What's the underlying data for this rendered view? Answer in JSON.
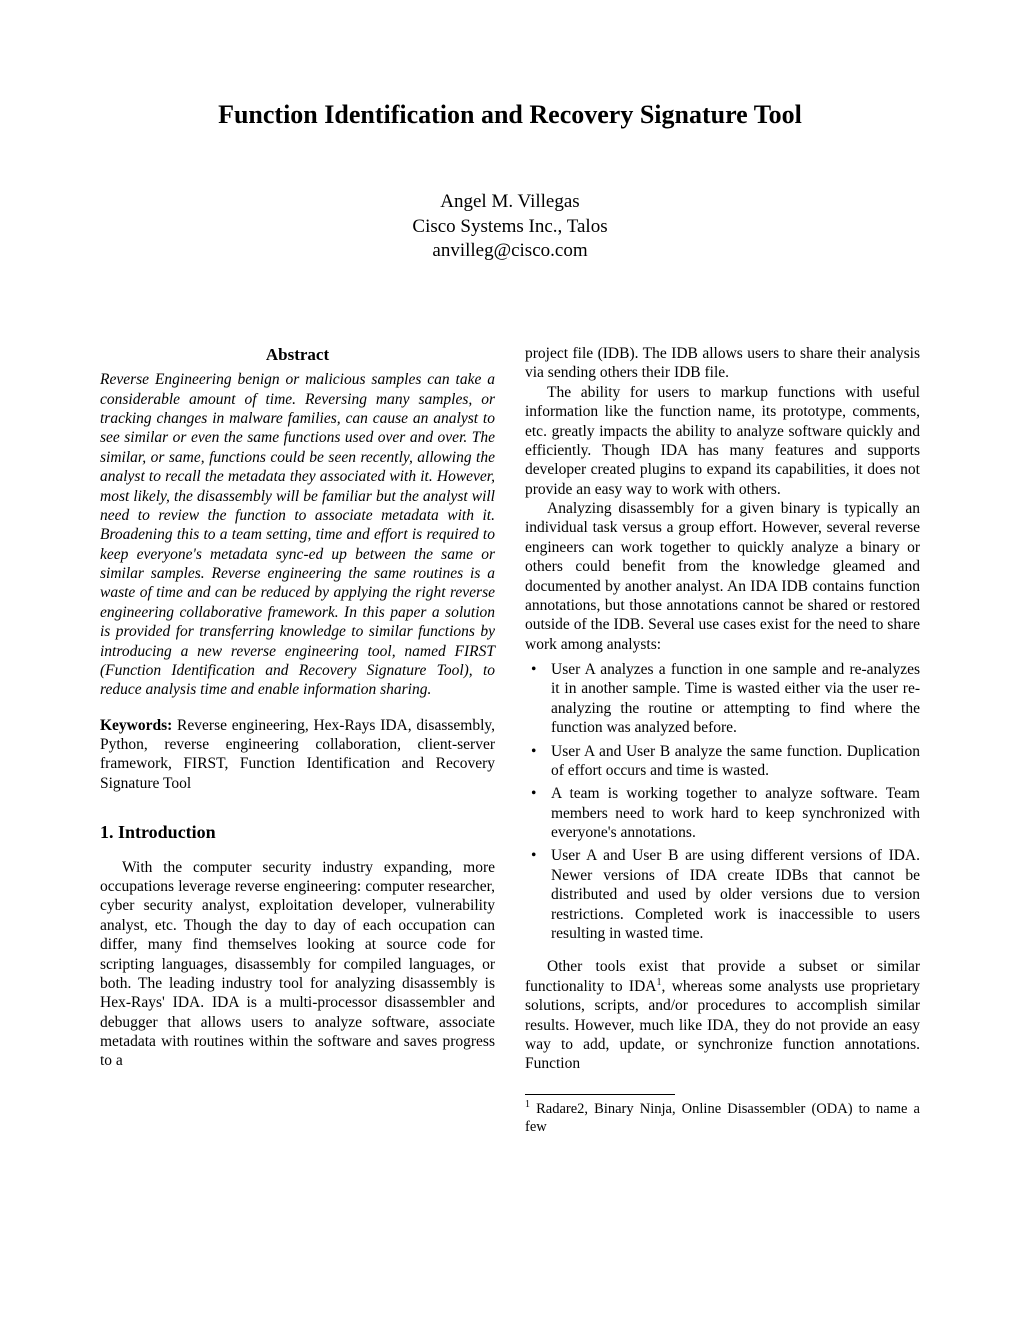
{
  "title": "Function Identification and Recovery Signature Tool",
  "author": {
    "name": "Angel M. Villegas",
    "affiliation": "Cisco Systems Inc., Talos",
    "email": "anvilleg@cisco.com"
  },
  "abstract": {
    "heading": "Abstract",
    "text": "Reverse Engineering benign or malicious samples can take a considerable amount of time. Reversing many samples, or tracking changes in malware families, can cause an analyst to see similar or even the same functions used over and over. The similar, or same, functions could be seen recently, allowing the analyst to recall the metadata they associated with it. However, most likely, the disassembly will be familiar but the analyst will need to review the function to associate metadata with it. Broadening this to a team setting, time and effort is required to keep everyone's metadata sync-ed up between the same or similar samples. Reverse engineering the same routines is a waste of time and can be reduced by applying the right reverse engineering collaborative framework. In this paper a solution is provided for transferring knowledge to similar functions by introducing a new reverse engineering tool, named FIRST (Function Identification and Recovery Signature Tool), to reduce analysis time and enable information sharing."
  },
  "keywords": {
    "label": "Keywords:",
    "text": " Reverse engineering, Hex-Rays IDA, disassembly, Python, reverse engineering collaboration, client-server framework, FIRST, Function Identification and Recovery Signature Tool"
  },
  "section1": {
    "heading": "1. Introduction",
    "para1": "With the computer security industry expanding, more occupations leverage reverse engineering: computer researcher, cyber security analyst, exploitation developer, vulnerability analyst, etc. Though the day to day of each occupation can differ, many find themselves looking at source code for scripting languages, disassembly for compiled languages, or both. The leading industry tool for analyzing disassembly is Hex-Rays' IDA. IDA is a multi-processor disassembler and debugger that allows users to analyze software, associate metadata with routines within the software and saves progress to a"
  },
  "col2": {
    "para1": "project file (IDB). The IDB allows users to share their analysis via sending others their IDB file.",
    "para2": "The ability for users to markup functions with useful information like the function name, its prototype, comments, etc. greatly impacts the ability to analyze software quickly and efficiently. Though IDA has many features and supports developer created plugins to expand its capabilities, it does not provide an easy way to work with others.",
    "para3": "Analyzing disassembly for a given binary is typically an individual task versus a group effort. However, several reverse engineers can work together to quickly analyze a binary or others could benefit from the knowledge gleamed and documented by another analyst. An IDA IDB contains function annotations, but those annotations cannot be shared or restored outside of the IDB. Several use cases exist for the need to share work among analysts:",
    "bullets": [
      "User A analyzes a function in one sample and re-analyzes it in another sample. Time is wasted either via the user re-analyzing the routine or attempting to find where the function was analyzed before.",
      "User A and User B analyze the same function. Duplication of effort occurs and time is wasted.",
      "A team is working together to analyze software. Team members need to work hard to keep synchronized with everyone's annotations.",
      "User A and User B are using different versions of IDA. Newer versions of IDA create IDBs that cannot be distributed and used by older versions due to version restrictions. Completed work is inaccessible to users resulting in wasted time."
    ],
    "para4_a": "Other tools exist that provide a subset or similar functionality to IDA",
    "para4_sup": "1",
    "para4_b": ", whereas some analysts use proprietary solutions, scripts, and/or procedures to accomplish similar results. However, much like IDA, they do not provide an easy way to add, update, or synchronize function annotations. Function"
  },
  "footnote": {
    "sup": "1",
    "text": " Radare2, Binary Ninja, Online Disassembler (ODA) to name a few"
  }
}
